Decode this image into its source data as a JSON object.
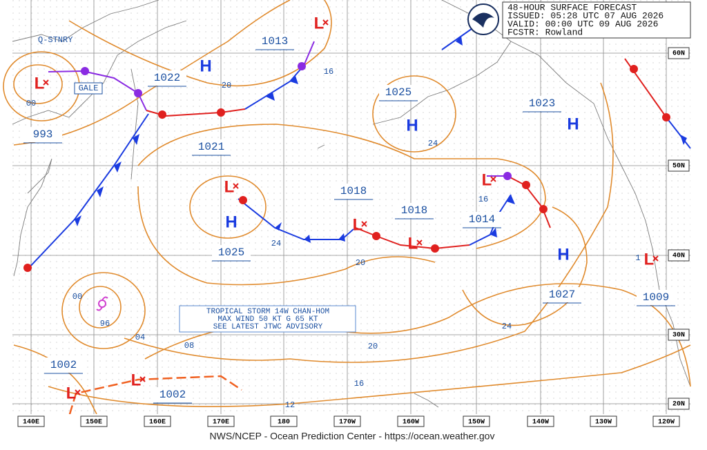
{
  "header": {
    "lines": [
      "48-HOUR SURFACE FORECAST",
      "ISSUED: 05:28 UTC 07 AUG 2026",
      "VALID:  00:00 UTC 09 AUG 2026",
      "FCSTR:  Rowland"
    ]
  },
  "footer": "NWS/NCEP - Ocean Prediction Center - https://ocean.weather.gov",
  "latitude_labels": [
    "60N",
    "50N",
    "40N",
    "30N",
    "20N"
  ],
  "longitude_labels": [
    "140E",
    "150E",
    "160E",
    "170E",
    "180",
    "170W",
    "160W",
    "150W",
    "140W",
    "130W",
    "120W"
  ],
  "front_labels": [
    "Q-STNRY",
    "GALE"
  ],
  "highs": [
    "H",
    "H",
    "H",
    "H",
    "H"
  ],
  "lows": [
    "L",
    "L",
    "L",
    "L",
    "L",
    "L",
    "L",
    "L",
    "L"
  ],
  "pressure_labels": [
    "1013",
    "1022",
    "993",
    "1021",
    "1025",
    "1023",
    "1018",
    "1018",
    "1014",
    "1025",
    "1027",
    "1009",
    "1002",
    "1002"
  ],
  "isobar_labels": [
    "20",
    "16",
    "24",
    "00",
    "24",
    "16",
    "20",
    "00",
    "96",
    "04",
    "08",
    "20",
    "16",
    "12",
    "24",
    "1"
  ],
  "storm_advisory": [
    "TROPICAL STORM 14W CHAN-HOM",
    "MAX WIND 50 KT G 65 KT",
    "SEE LATEST JTWC ADVISORY"
  ]
}
